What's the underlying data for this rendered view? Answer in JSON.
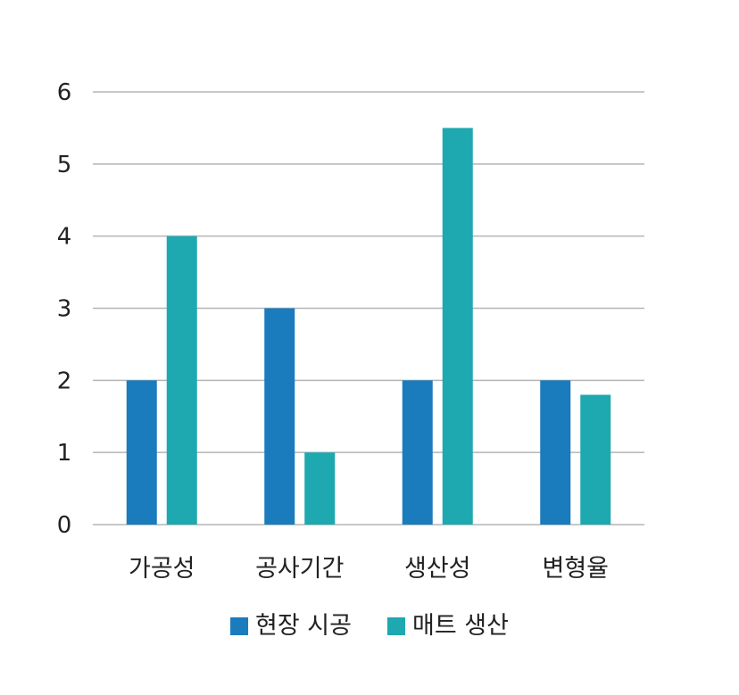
{
  "chart_data": {
    "type": "bar",
    "categories": [
      "가공성",
      "공사기간",
      "생산성",
      "변형율"
    ],
    "series": [
      {
        "name": "현장 시공",
        "values": [
          2,
          3,
          2,
          2
        ],
        "color": "#1a7bbd"
      },
      {
        "name": "매트 생산",
        "values": [
          4,
          1,
          5.5,
          1.8
        ],
        "color": "#1ea8b0"
      }
    ],
    "yticks": [
      "0",
      "1",
      "2",
      "3",
      "4",
      "5",
      "6"
    ],
    "ylim": [
      0,
      6
    ],
    "grid": true,
    "legend": "bottom-center"
  }
}
